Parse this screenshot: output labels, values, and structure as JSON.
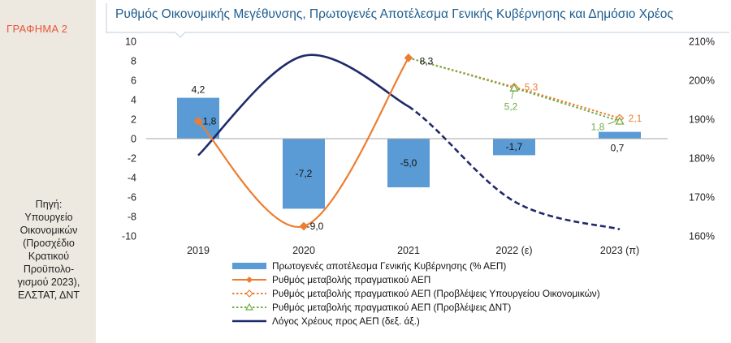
{
  "sidebar": {
    "chart_no": "ΓΡΑΦΗΜΑ 2",
    "source": "Πηγή:\nΥπουργείο\nΟικονομικών\n(Προσχέδιο\nΚρατικού\nΠροϋπολο-\nγισμού 2023),\nΕΛΣΤΑΤ, ΔΝΤ"
  },
  "colors": {
    "bar": "#5b9bd5",
    "gdp": "#ed7d31",
    "forecast_ministry": "#ed7d31",
    "forecast_imf": "#70ad47",
    "debt": "#1f2a6b",
    "title": "#1d5d8f",
    "frame": "#cdd6e3"
  },
  "chart_data": {
    "type": "bar",
    "title": "Ρυθμός Οικονομικής Μεγέθυνσης, Πρωτογενές Αποτέλεσμα Γενικής Κυβέρνησης και Δημόσιο Χρέος",
    "categories": [
      "2019",
      "2020",
      "2021",
      "2022 (ε)",
      "2023 (π)"
    ],
    "y_left": {
      "range": [
        -10,
        10
      ],
      "ticks": [
        "10",
        "8",
        "6",
        "4",
        "2",
        "0",
        "-2",
        "-4",
        "-6",
        "-8",
        "-10"
      ]
    },
    "y_right": {
      "range": [
        160,
        210
      ],
      "ticks": [
        "210%",
        "200%",
        "190%",
        "180%",
        "170%",
        "160%"
      ]
    },
    "grid": false,
    "legend_position": "bottom",
    "series": [
      {
        "name": "Πρωτογενές αποτέλεσμα Γενικής Κυβέρνησης (% ΑΕΠ)",
        "kind": "bar",
        "axis": "left",
        "values": [
          4.2,
          -7.2,
          -5.0,
          -1.7,
          0.7
        ],
        "labels": [
          "4,2",
          "-7,2",
          "-5,0",
          "-1,7",
          "0,7"
        ]
      },
      {
        "name": "Ρυθμός μεταβολής πραγματικού ΑΕΠ",
        "kind": "line",
        "axis": "left",
        "values": [
          1.8,
          -9.0,
          8.3,
          null,
          null
        ],
        "labels": [
          "1,8",
          "-9,0",
          "8,3",
          "",
          ""
        ]
      },
      {
        "name": "Ρυθμός μεταβολής πραγματικού ΑΕΠ (Προβλέψεις Υπουργείου Οικονομικών)",
        "kind": "line",
        "axis": "left",
        "values": [
          null,
          null,
          8.3,
          5.3,
          2.1
        ],
        "labels": [
          "",
          "",
          "",
          "5,3",
          "2,1"
        ]
      },
      {
        "name": "Ρυθμός μεταβολής πραγματικού ΑΕΠ (Προβλέψεις ΔΝΤ)",
        "kind": "line",
        "axis": "left",
        "values": [
          null,
          null,
          8.3,
          5.2,
          1.8
        ],
        "labels": [
          "",
          "",
          "",
          "5,2",
          "1,8"
        ]
      },
      {
        "name": "Λόγος Χρέους προς ΑΕΠ (δεξ. άξ.)",
        "kind": "line",
        "axis": "right",
        "values": [
          180.7,
          206.3,
          193.3,
          168.9,
          161.7
        ],
        "labels": [
          "",
          "",
          "",
          "",
          ""
        ]
      }
    ]
  }
}
